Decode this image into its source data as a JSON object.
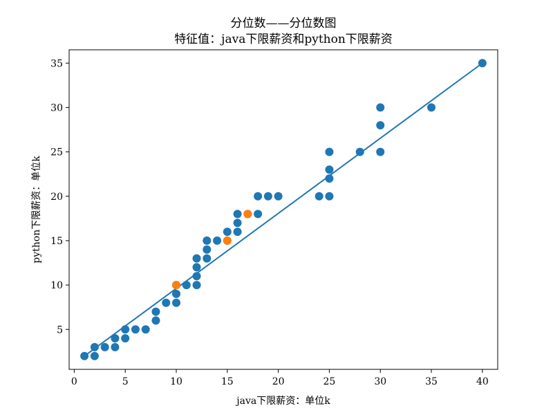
{
  "chart_data": {
    "type": "scatter",
    "title": "分位数——分位数图",
    "subtitle": "特征值：java下限薪资和python下限薪资",
    "xlabel": "java下限薪资：单位k",
    "ylabel": "python下限薪资：单位k",
    "xlim": [
      -0.5,
      41.5
    ],
    "ylim": [
      0.5,
      36.5
    ],
    "xticks": [
      0,
      5,
      10,
      15,
      20,
      25,
      30,
      35,
      40
    ],
    "yticks": [
      5,
      10,
      15,
      20,
      25,
      30,
      35
    ],
    "grid": false,
    "colors": {
      "series_main": "#1f77b4",
      "series_highlight": "#ff7f0e",
      "fit_line": "#1f77b4"
    },
    "series": [
      {
        "color": "#1f77b4",
        "points": [
          [
            1,
            2
          ],
          [
            2,
            2
          ],
          [
            2,
            3
          ],
          [
            3,
            3
          ],
          [
            4,
            3
          ],
          [
            4,
            4
          ],
          [
            5,
            4
          ],
          [
            5,
            5
          ],
          [
            6,
            5
          ],
          [
            7,
            5
          ],
          [
            8,
            6
          ],
          [
            8,
            7
          ],
          [
            9,
            8
          ],
          [
            10,
            8
          ],
          [
            10,
            9
          ],
          [
            10,
            10
          ],
          [
            11,
            10
          ],
          [
            12,
            10
          ],
          [
            12,
            11
          ],
          [
            12,
            12
          ],
          [
            12,
            13
          ],
          [
            13,
            13
          ],
          [
            13,
            14
          ],
          [
            13,
            15
          ],
          [
            14,
            15
          ],
          [
            15,
            15
          ],
          [
            15,
            16
          ],
          [
            16,
            16
          ],
          [
            16,
            17
          ],
          [
            16,
            18
          ],
          [
            17,
            18
          ],
          [
            18,
            18
          ],
          [
            18,
            20
          ],
          [
            19,
            20
          ],
          [
            20,
            20
          ],
          [
            24,
            20
          ],
          [
            25,
            20
          ],
          [
            25,
            22
          ],
          [
            25,
            23
          ],
          [
            25,
            25
          ],
          [
            28,
            25
          ],
          [
            30,
            25
          ],
          [
            30,
            28
          ],
          [
            30,
            30
          ],
          [
            35,
            30
          ],
          [
            40,
            35
          ]
        ]
      },
      {
        "color": "#ff7f0e",
        "points": [
          [
            10,
            10
          ],
          [
            15,
            15
          ],
          [
            17,
            18
          ]
        ]
      }
    ],
    "fit_line": {
      "from": [
        1,
        2
      ],
      "to": [
        40,
        35
      ]
    }
  }
}
